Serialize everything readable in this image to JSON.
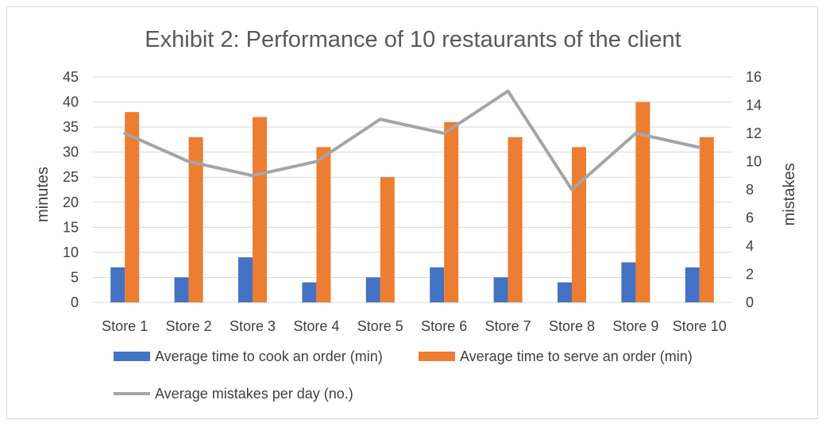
{
  "chart_data": {
    "type": "bar",
    "title": "Exhibit 2: Performance of 10 restaurants of the client",
    "categories": [
      "Store 1",
      "Store 2",
      "Store 3",
      "Store 4",
      "Store 5",
      "Store 6",
      "Store 7",
      "Store 8",
      "Store 9",
      "Store 10"
    ],
    "ylabel": "minutes",
    "y2label": "mistakes",
    "ylim": [
      0,
      45
    ],
    "y2lim": [
      0,
      16
    ],
    "yticks": [
      "0",
      "5",
      "10",
      "15",
      "20",
      "25",
      "30",
      "35",
      "40",
      "45"
    ],
    "y2ticks": [
      "0",
      "2",
      "4",
      "6",
      "8",
      "10",
      "12",
      "14",
      "16"
    ],
    "grid": true,
    "legend_position": "bottom",
    "series": [
      {
        "name": "Average time to cook an order (min)",
        "type": "bar",
        "axis": "left",
        "color": "#4472C4",
        "values": [
          7,
          5,
          9,
          4,
          5,
          7,
          5,
          4,
          8,
          7
        ]
      },
      {
        "name": "Average time to serve an order (min)",
        "type": "bar",
        "axis": "left",
        "color": "#ED7D31",
        "values": [
          38,
          33,
          37,
          31,
          25,
          36,
          33,
          31,
          40,
          33
        ]
      },
      {
        "name": "Average mistakes per day (no.)",
        "type": "line",
        "axis": "right",
        "color": "#A5A5A5",
        "values": [
          12,
          10,
          9,
          10,
          13,
          12,
          15,
          8,
          12,
          11
        ]
      }
    ]
  }
}
